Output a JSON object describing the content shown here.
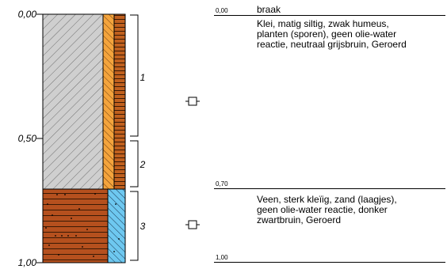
{
  "depth_scale": {
    "ticks": [
      {
        "label": "0,00",
        "value": 0.0
      },
      {
        "label": "0,50",
        "value": 0.5
      },
      {
        "label": "1,00",
        "value": 1.0
      }
    ]
  },
  "layers": [
    {
      "number": "1",
      "top": 0.0,
      "bottom": 0.52
    },
    {
      "number": "2",
      "top": 0.52,
      "bottom": 0.7
    },
    {
      "number": "3",
      "top": 0.7,
      "bottom": 1.0
    }
  ],
  "lithology_column": {
    "segments": [
      {
        "top": 0.0,
        "bottom": 0.7,
        "name": "klei",
        "colors": [
          "#cfcfcf",
          "#f4a43c",
          "#c0601e"
        ]
      },
      {
        "top": 0.7,
        "bottom": 1.0,
        "name": "veen",
        "colors": [
          "#b5501e",
          "#6ec8f0"
        ]
      }
    ]
  },
  "samples": [
    {
      "depth": 0.4,
      "icon": "sample-marker-icon"
    },
    {
      "depth": 0.86,
      "icon": "sample-marker-icon"
    }
  ],
  "descriptions": [
    {
      "boundary_depth": "0,00",
      "text": "braak",
      "lines": []
    },
    {
      "boundary_depth": "",
      "text": "",
      "lines": [
        "Klei, matig siltig, zwak humeus,",
        "planten (sporen), geen olie-water",
        "reactie, neutraal grijsbruin, Geroerd"
      ]
    },
    {
      "boundary_depth": "0,70",
      "text": "",
      "lines": [
        "Veen, sterk kleïig, zand (laagjes),",
        "geen olie-water reactie, donker",
        "zwartbruin, Geroerd"
      ]
    },
    {
      "boundary_depth": "1,00",
      "text": "",
      "lines": []
    }
  ]
}
